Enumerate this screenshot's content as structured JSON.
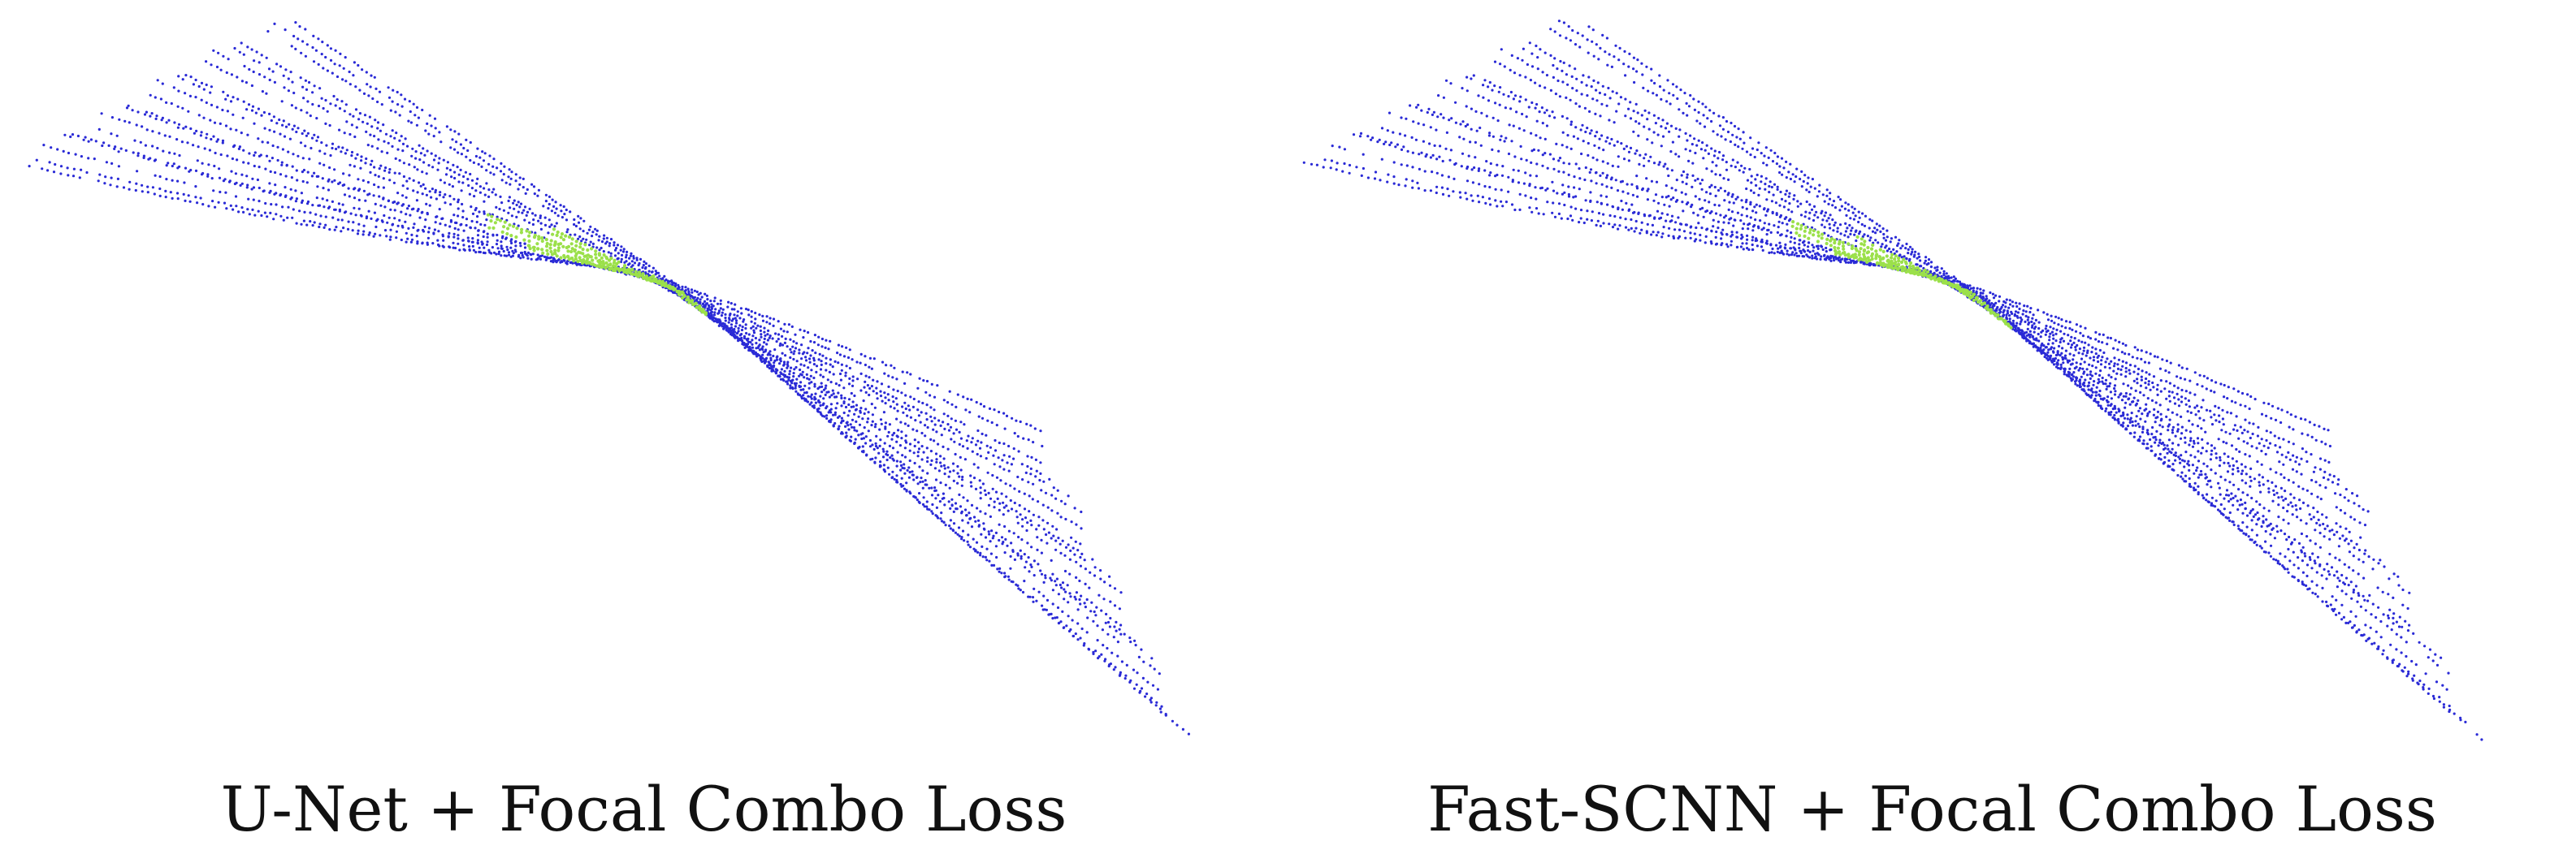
{
  "panels": [
    {
      "caption": "U-Net + Focal Combo Loss"
    },
    {
      "caption": "Fast-SCNN + Focal Combo Loss"
    }
  ],
  "colors": {
    "background": "#ffffff",
    "background_points": "#2a2ad6",
    "segmented_points": "#9be04a",
    "caption_text": "#111111"
  }
}
